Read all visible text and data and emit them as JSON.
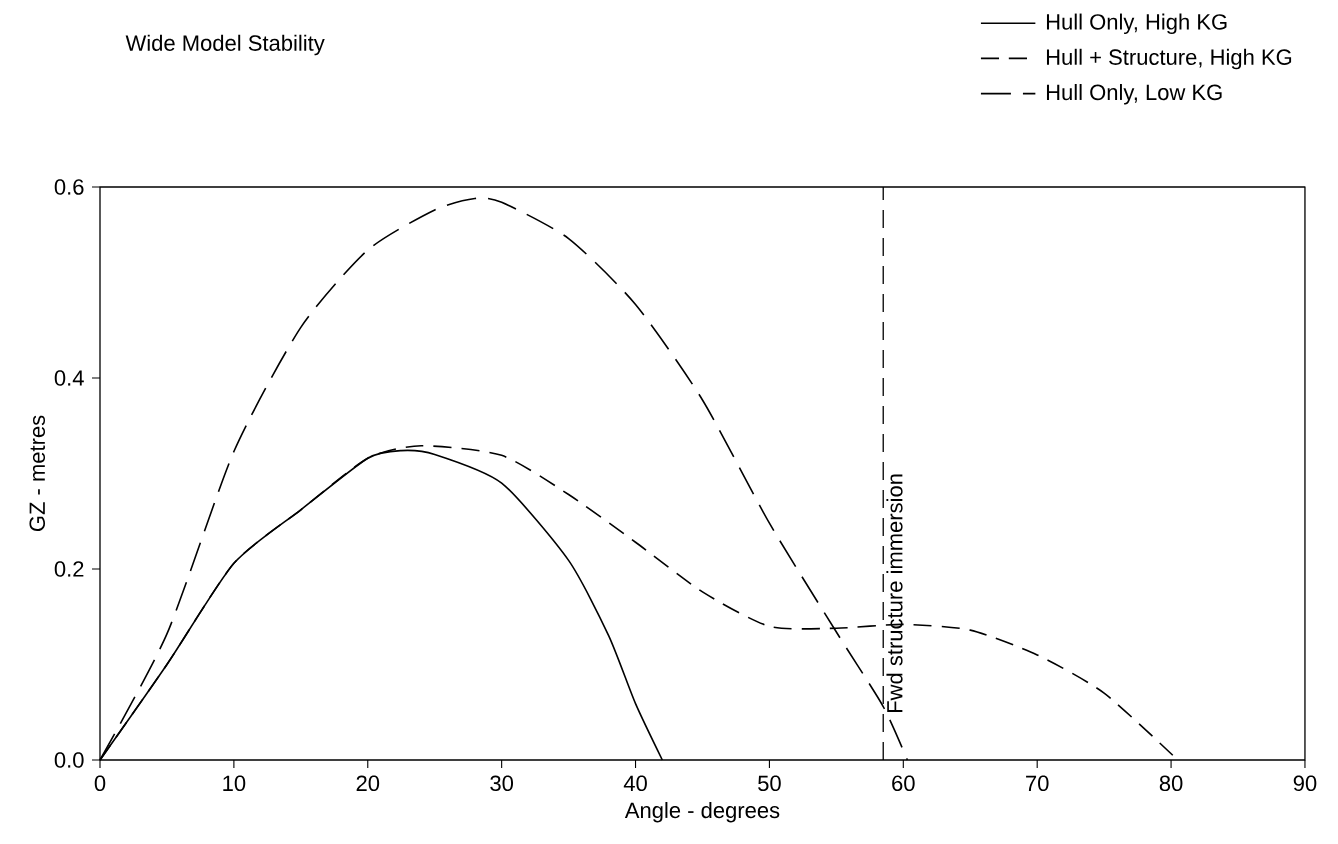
{
  "chart_data": {
    "type": "line",
    "title": "Wide Model Stability",
    "xlabel": "Angle - degrees",
    "ylabel": "GZ - metres",
    "xlim": [
      0,
      90
    ],
    "ylim": [
      0,
      0.6
    ],
    "xticks": [
      0,
      10,
      20,
      30,
      40,
      50,
      60,
      70,
      80,
      90
    ],
    "yticks": [
      {
        "value": 0,
        "label": "0.0"
      },
      {
        "value": 0.2,
        "label": "0.2"
      },
      {
        "value": 0.4,
        "label": "0.4"
      },
      {
        "value": 0.6,
        "label": "0.6"
      }
    ],
    "legend": "top right",
    "grid": false,
    "marker": "none",
    "series": [
      {
        "name": "Hull Only, High KG",
        "color": "#000000",
        "line_style": "solid",
        "x": [
          0,
          5,
          10,
          15,
          20,
          22.5,
          25,
          30,
          35,
          38,
          40,
          42
        ],
        "values": [
          0,
          0.1,
          0.206,
          0.262,
          0.316,
          0.324,
          0.32,
          0.29,
          0.209,
          0.13,
          0.059,
          0
        ]
      },
      {
        "name": "Hull + Structure, High KG",
        "color": "#000000",
        "line_style": "dashed",
        "x": [
          0,
          5,
          10,
          15,
          20,
          24,
          30,
          35,
          40,
          45,
          50,
          55,
          60,
          65,
          70,
          75,
          80.5
        ],
        "values": [
          0,
          0.1,
          0.206,
          0.262,
          0.316,
          0.329,
          0.319,
          0.278,
          0.228,
          0.176,
          0.14,
          0.138,
          0.142,
          0.136,
          0.11,
          0.07,
          0
        ]
      },
      {
        "name": "Hull Only, Low KG",
        "color": "#000000",
        "line_style": "dashed",
        "x": [
          0,
          5,
          10,
          15,
          20,
          25,
          28,
          30,
          35,
          40,
          45,
          50,
          55,
          58.5,
          60.3
        ],
        "values": [
          0,
          0.132,
          0.323,
          0.453,
          0.534,
          0.576,
          0.588,
          0.584,
          0.546,
          0.477,
          0.377,
          0.248,
          0.134,
          0.056,
          0
        ]
      }
    ],
    "ref_lines": [
      {
        "axis": "x",
        "value": 58.5,
        "label": "Fwd structure immersion",
        "color": "#000000",
        "line_style": "dashed"
      }
    ]
  }
}
